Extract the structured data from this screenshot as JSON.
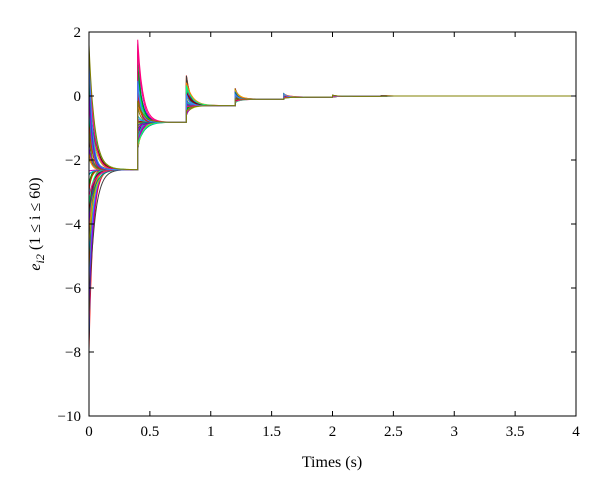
{
  "chart_data": {
    "type": "line",
    "title": "",
    "xlabel": "Times (s)",
    "ylabel_main": "e",
    "ylabel_sub": "i2",
    "ylabel_rest": " (1 ≤ i ≤ 60)",
    "xlim": [
      0,
      4
    ],
    "ylim": [
      -10,
      2
    ],
    "x_ticks": [
      0,
      0.5,
      1,
      1.5,
      2,
      2.5,
      3,
      3.5,
      4
    ],
    "x_tick_labels": [
      "0",
      "0.5",
      "1",
      "1.5",
      "2",
      "2.5",
      "3",
      "3.5",
      "4"
    ],
    "y_ticks": [
      -10,
      -8,
      -6,
      -4,
      -2,
      0,
      2
    ],
    "y_tick_labels": [
      "−10",
      "−8",
      "−6",
      "−4",
      "−2",
      "0",
      "2"
    ],
    "grid": false,
    "legend": "none",
    "series_count": 60,
    "switch_times": [
      0,
      0.4,
      0.8,
      1.2,
      1.6,
      2.0,
      2.4
    ],
    "segment_targets": [
      -2.3,
      -0.82,
      -0.3,
      -0.1,
      -0.035,
      -0.012,
      0
    ],
    "initial_range": [
      -8,
      1.5
    ],
    "peak_values_after_switch": [
      1.8,
      0.65,
      0.25,
      0.08,
      0.03,
      0.01
    ],
    "colors": [
      "#ff0000",
      "#00a000",
      "#0000ff",
      "#00c0c0",
      "#c000c0",
      "#c0c000",
      "#404040",
      "#ff8000",
      "#8000ff",
      "#008080",
      "#800000",
      "#00ff80",
      "#ff0080",
      "#4080ff",
      "#808000"
    ]
  }
}
